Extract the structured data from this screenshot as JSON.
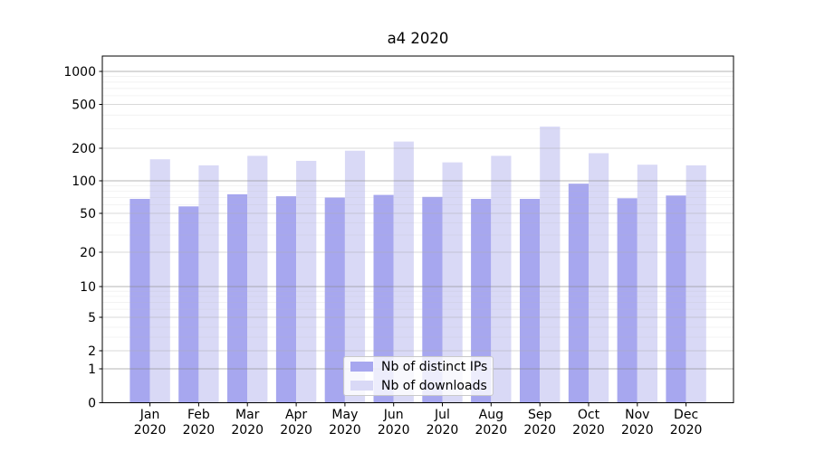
{
  "chart_data": {
    "type": "bar",
    "title": "a4 2020",
    "x_categories": [
      "Jan",
      "Feb",
      "Mar",
      "Apr",
      "May",
      "Jun",
      "Jul",
      "Aug",
      "Sep",
      "Oct",
      "Nov",
      "Dec"
    ],
    "x_year": "2020",
    "series": [
      {
        "name": "Nb of distinct IPs",
        "color": "#a7a7ef",
        "values": [
          68,
          58,
          75,
          72,
          70,
          74,
          71,
          68,
          68,
          94,
          69,
          73
        ]
      },
      {
        "name": "Nb of downloads",
        "color": "#d9d9f6",
        "values": [
          158,
          139,
          170,
          153,
          190,
          230,
          148,
          170,
          315,
          180,
          141,
          139
        ]
      }
    ],
    "yscale": "symlog",
    "ylim": [
      0,
      1400
    ],
    "y_tick_values": [
      0,
      1,
      2,
      5,
      10,
      20,
      50,
      100,
      200,
      500,
      1000
    ],
    "y_tick_labels": [
      "0",
      "1",
      "2",
      "5",
      "10",
      "20",
      "50",
      "100",
      "200",
      "500",
      "1000"
    ],
    "y_minor_tick_values": [
      3,
      4,
      6,
      7,
      8,
      9,
      30,
      40,
      60,
      70,
      80,
      90,
      300,
      400,
      600,
      700,
      800,
      900
    ],
    "grid": "both",
    "legend_position": "lower-center"
  },
  "colors": {
    "background": "#ffffff",
    "axis": "#000000",
    "text": "#000000",
    "grid_decade": "#888888",
    "grid_labeled": "#aaaaaa",
    "grid_minor": "#bbbbbb"
  }
}
